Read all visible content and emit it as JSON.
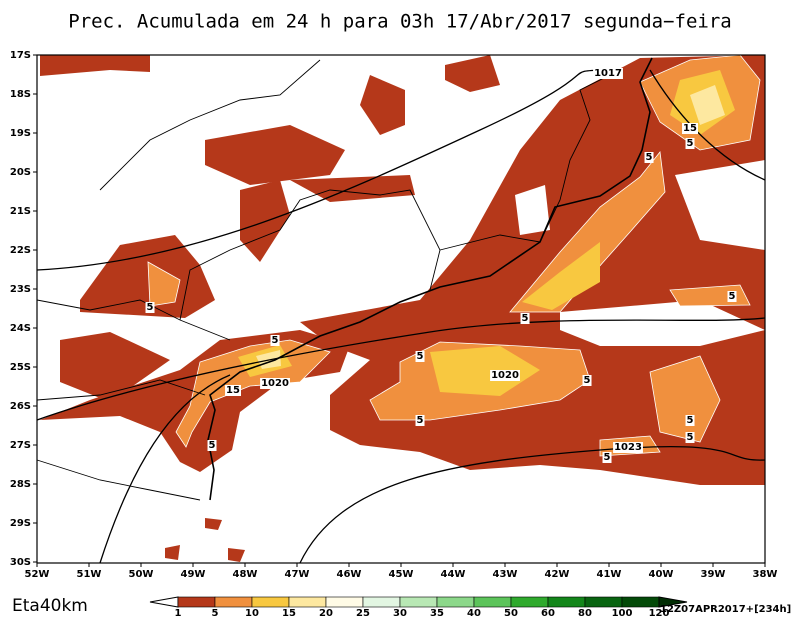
{
  "header": {
    "title": "Prec. Acumulada em 24 h para 03h 17/Abr/2017 segunda−feira"
  },
  "map": {
    "lat_labels": [
      "17S",
      "18S",
      "19S",
      "20S",
      "21S",
      "22S",
      "23S",
      "24S",
      "25S",
      "26S",
      "27S",
      "28S",
      "29S",
      "30S"
    ],
    "lon_labels": [
      "52W",
      "51W",
      "50W",
      "49W",
      "48W",
      "47W",
      "46W",
      "45W",
      "44W",
      "43W",
      "42W",
      "41W",
      "40W",
      "39W",
      "38W"
    ],
    "contour_labels": [
      "1017",
      "15",
      "5",
      "5",
      "5",
      "5",
      "1020",
      "15",
      "5",
      "5",
      "1020",
      "5",
      "5",
      "5",
      "5",
      "5",
      "5",
      "1023",
      "5"
    ]
  },
  "colorbar": {
    "labels": [
      1,
      5,
      10,
      15,
      20,
      25,
      30,
      35,
      40,
      50,
      60,
      80,
      100,
      120
    ],
    "colors": [
      "#ffffff",
      "#b5381a",
      "#f0903e",
      "#f8c840",
      "#fde8a0",
      "#fffbe6",
      "#e2f6e2",
      "#b8e8b4",
      "#8cd88a",
      "#5cc45a",
      "#2faa2d",
      "#13861a",
      "#086410",
      "#034a08",
      "#022e04"
    ]
  },
  "footer": {
    "model": "Eta40km",
    "run": "12Z07APR2017+[234h]"
  }
}
